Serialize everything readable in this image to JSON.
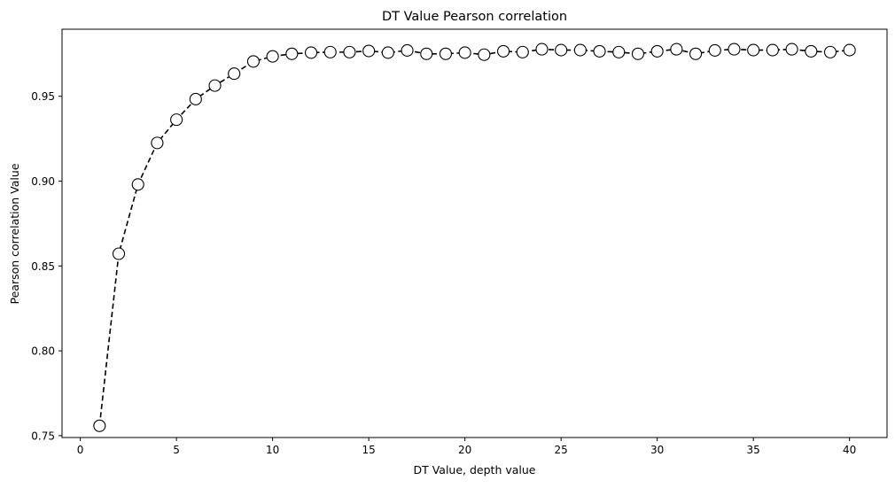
{
  "chart_data": {
    "type": "line",
    "title": "DT Value Pearson correlation",
    "xlabel": "DT Value, depth value",
    "ylabel": "Pearson correlation Value",
    "xlim": [
      -0.95,
      41.95
    ],
    "ylim": [
      0.7489,
      0.9895
    ],
    "xticks": [
      0,
      5,
      10,
      15,
      20,
      25,
      30,
      35,
      40
    ],
    "xtick_labels": [
      "0",
      "5",
      "10",
      "15",
      "20",
      "25",
      "30",
      "35",
      "40"
    ],
    "yticks": [
      0.75,
      0.8,
      0.85,
      0.9,
      0.95
    ],
    "ytick_labels": [
      "0.75",
      "0.80",
      "0.85",
      "0.90",
      "0.95"
    ],
    "grid": false,
    "legend": "none",
    "line_style": "dashed",
    "line_color": "#000000",
    "marker": "circle",
    "marker_face": "#ffffff",
    "marker_edge": "#000000",
    "series": [
      {
        "x": [
          1,
          2,
          3,
          4,
          5,
          6,
          7,
          8,
          9,
          10,
          11,
          12,
          13,
          14,
          15,
          16,
          17,
          18,
          19,
          20,
          21,
          22,
          23,
          24,
          25,
          26,
          27,
          28,
          29,
          30,
          31,
          32,
          33,
          34,
          35,
          36,
          37,
          38,
          39,
          40
        ],
        "values": [
          0.7558,
          0.8572,
          0.898,
          0.9225,
          0.9362,
          0.9483,
          0.9563,
          0.9633,
          0.9705,
          0.9735,
          0.975,
          0.9757,
          0.976,
          0.976,
          0.9767,
          0.9757,
          0.977,
          0.975,
          0.975,
          0.9757,
          0.9745,
          0.9765,
          0.976,
          0.9777,
          0.9772,
          0.9772,
          0.9765,
          0.976,
          0.975,
          0.9765,
          0.9777,
          0.975,
          0.977,
          0.9777,
          0.9772,
          0.9772,
          0.9777,
          0.9765,
          0.976,
          0.9772
        ]
      }
    ]
  }
}
